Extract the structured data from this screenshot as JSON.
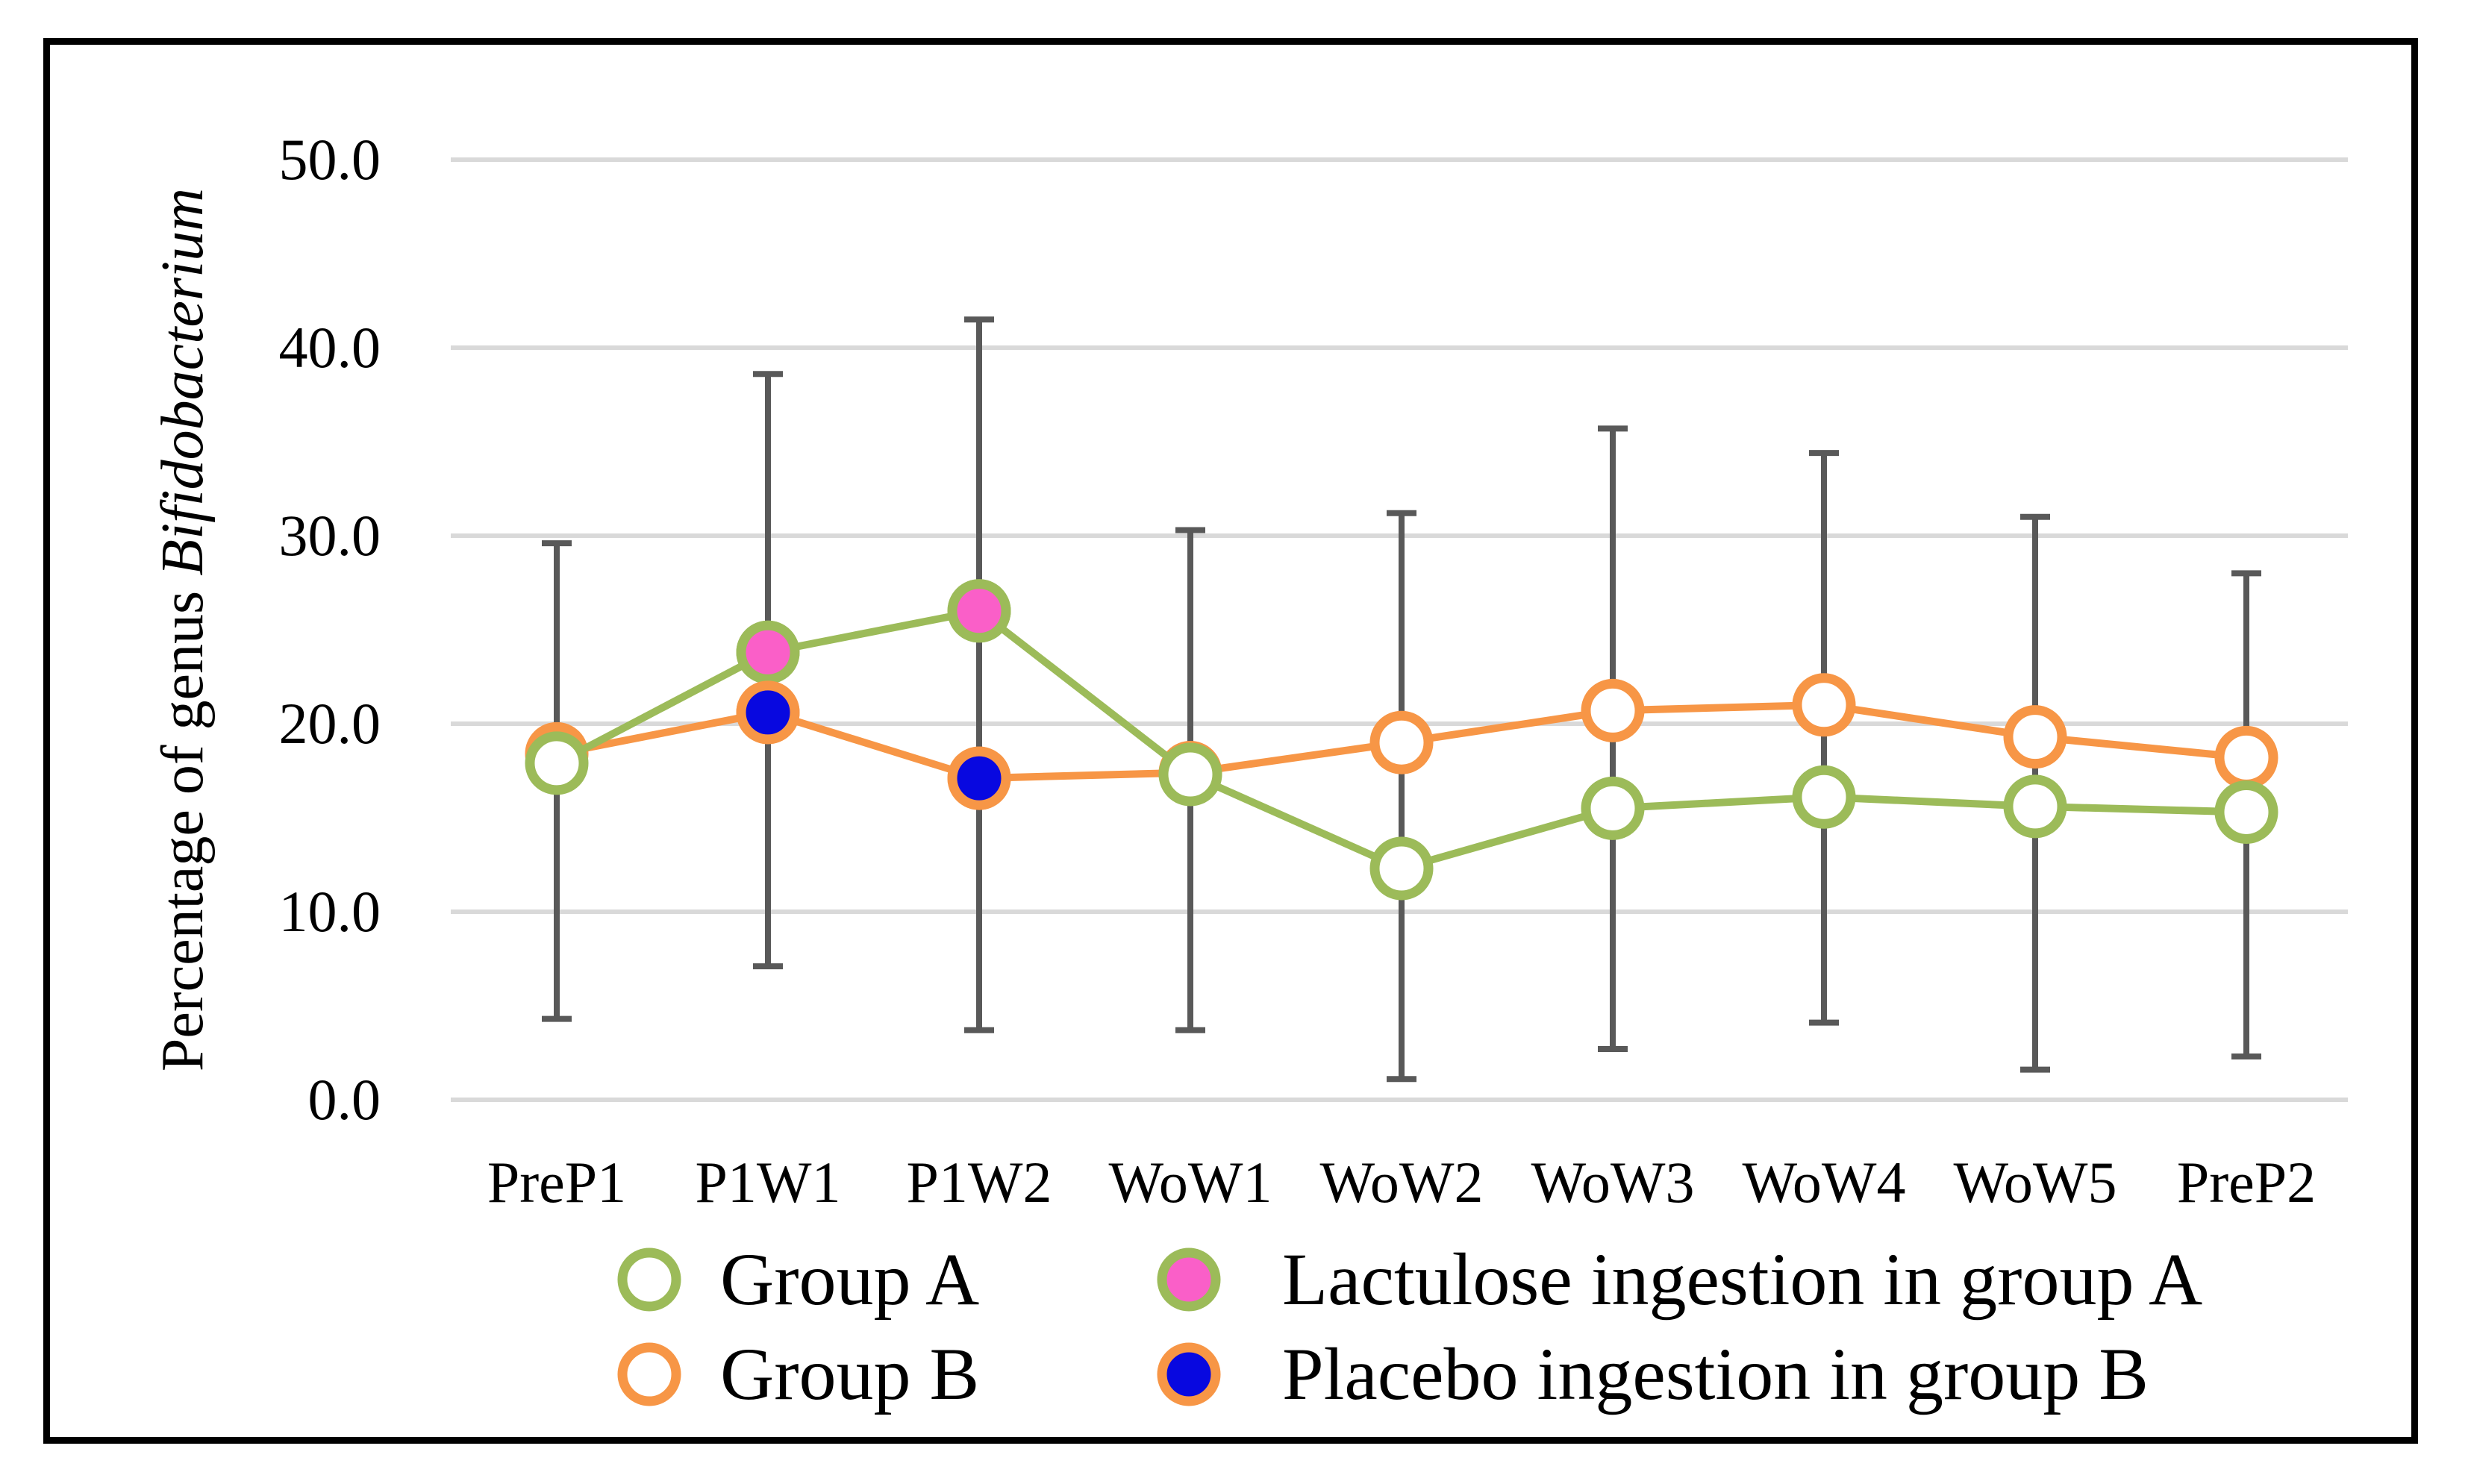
{
  "figure": {
    "background": "#ffffff",
    "border_color": "#000000"
  },
  "chart_data": {
    "type": "line",
    "title": "",
    "ylabel_regular": "Percentage of genus ",
    "ylabel_italic": "Bifidobacterium",
    "xlabel": "",
    "categories": [
      "PreP1",
      "P1W1",
      "P1W2",
      "WoW1",
      "WoW2",
      "WoW3",
      "WoW4",
      "WoW5",
      "PreP2"
    ],
    "yticks": [
      "50.0",
      "40.0",
      "30.0",
      "20.0",
      "10.0",
      "0.0"
    ],
    "ytick_values": [
      50,
      40,
      30,
      20,
      10,
      0
    ],
    "ylim": [
      0,
      50
    ],
    "grid": "horizontal",
    "gridline_color": "#d9d9d9",
    "series": [
      {
        "name": "Group B",
        "color": "#f79646",
        "marker": "open-circle",
        "values": [
          18.4,
          20.6,
          17.1,
          17.4,
          19.0,
          20.7,
          21.0,
          19.3,
          18.2
        ]
      },
      {
        "name": "Group A",
        "color": "#9cbb59",
        "marker": "open-circle",
        "values": [
          17.9,
          23.8,
          26.0,
          17.3,
          12.3,
          15.5,
          16.1,
          15.6,
          15.3
        ]
      }
    ],
    "special_markers": [
      {
        "name": "Lactulose ingestion in group A",
        "fill": "#fa5fc8",
        "ring": "#9cbb59",
        "points": [
          {
            "category": "P1W1",
            "value": 23.8
          },
          {
            "category": "P1W2",
            "value": 26.0
          }
        ]
      },
      {
        "name": "Placebo ingestion in group B",
        "fill": "#0808e0",
        "ring": "#f79646",
        "points": [
          {
            "category": "P1W1",
            "value": 20.6
          },
          {
            "category": "P1W2",
            "value": 17.1
          }
        ]
      }
    ],
    "error_bars": {
      "color": "#595959",
      "by_category": [
        {
          "category": "PreP1",
          "low": 4.3,
          "high": 29.6
        },
        {
          "category": "P1W1",
          "low": 7.1,
          "high": 38.6
        },
        {
          "category": "P1W2",
          "low": 3.7,
          "high": 41.5
        },
        {
          "category": "WoW1",
          "low": 3.7,
          "high": 30.3
        },
        {
          "category": "WoW2",
          "low": 1.1,
          "high": 31.2
        },
        {
          "category": "WoW3",
          "low": 2.7,
          "high": 35.7
        },
        {
          "category": "WoW4",
          "low": 4.1,
          "high": 34.4
        },
        {
          "category": "WoW5",
          "low": 1.6,
          "high": 31.0
        },
        {
          "category": "PreP2",
          "low": 2.3,
          "high": 28.0
        }
      ]
    },
    "legend": {
      "position": "bottom",
      "items": [
        {
          "label": "Group A",
          "fill": "#ffffff",
          "ring": "#9cbb59",
          "column": 0,
          "row": 0
        },
        {
          "label": "Group B",
          "fill": "#ffffff",
          "ring": "#f79646",
          "column": 0,
          "row": 1
        },
        {
          "label": "Lactulose ingestion in group A",
          "fill": "#fa5fc8",
          "ring": "#9cbb59",
          "column": 1,
          "row": 0
        },
        {
          "label": "Placebo ingestion in group B",
          "fill": "#0808e0",
          "ring": "#f79646",
          "column": 1,
          "row": 1
        }
      ]
    }
  }
}
